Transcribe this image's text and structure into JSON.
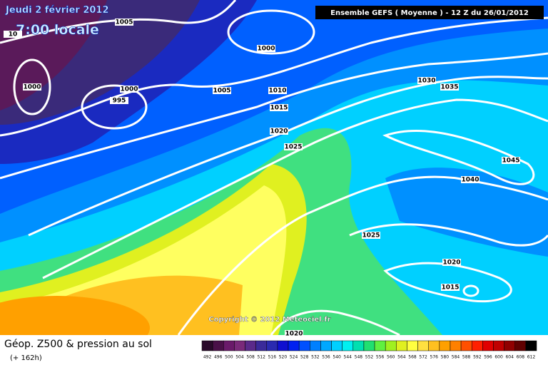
{
  "header": {
    "date": "Jeudi 2 février 2012",
    "time": "7:00 locale",
    "run": "Ensemble GEFS ( Moyenne )  -  12 Z du 26/01/2012"
  },
  "copyright": "Copyright © 2012 Meteociel.fr",
  "footer": {
    "title": "Géop. Z500 & pression au sol",
    "lead": "(+ 162h)"
  },
  "isobar_labels": [
    1005,
    10,
    1000,
    1000,
    1000,
    995,
    1005,
    1010,
    1015,
    1020,
    1025,
    1030,
    1035,
    1045,
    1040,
    1025,
    1020,
    1015,
    1020
  ],
  "legend": {
    "labels": [
      492,
      496,
      500,
      504,
      508,
      512,
      516,
      520,
      524,
      528,
      532,
      536,
      540,
      544,
      548,
      552,
      556,
      560,
      564,
      568,
      572,
      576,
      580,
      584,
      588,
      592,
      596,
      600,
      604,
      608,
      612
    ],
    "colors": [
      "#2a0a2a",
      "#4a1048",
      "#6a1a6a",
      "#7a2a7a",
      "#5a2a8a",
      "#3a2a9a",
      "#2a2ab0",
      "#1010d0",
      "#0020f0",
      "#0050ff",
      "#0080ff",
      "#00a8ff",
      "#00d0ff",
      "#00f0f0",
      "#00e0b0",
      "#20e070",
      "#60f040",
      "#a0f020",
      "#e0f020",
      "#ffff40",
      "#ffe040",
      "#ffc020",
      "#ffa000",
      "#ff8000",
      "#ff5000",
      "#ff2000",
      "#e00000",
      "#c00000",
      "#900000",
      "#600000",
      "#000000"
    ]
  }
}
